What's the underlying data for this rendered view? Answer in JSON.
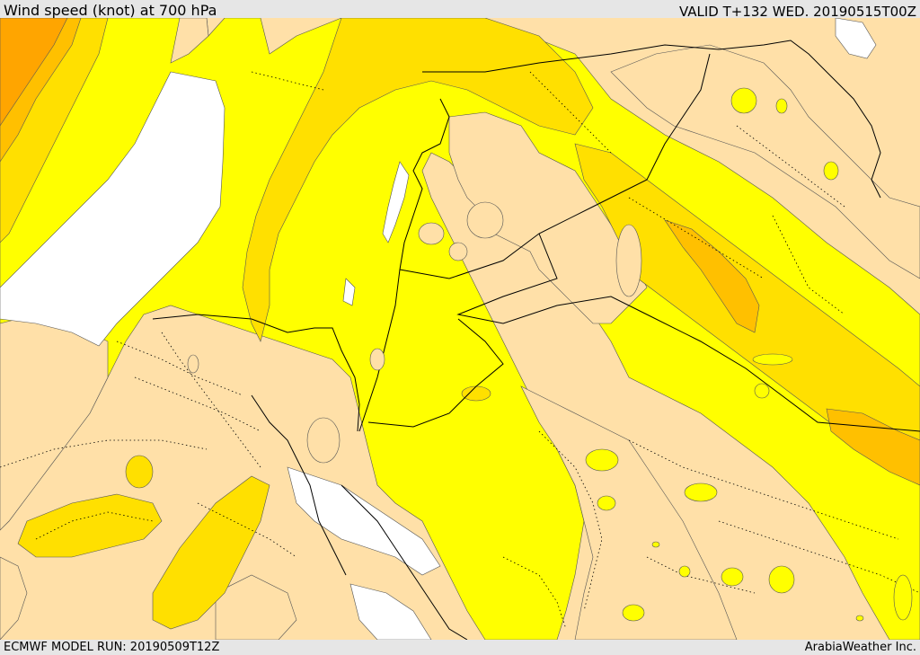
{
  "header": {
    "title": "Wind speed (knot) at 700 hPa",
    "valid": "VALID T+132 WED. 20190515T00Z"
  },
  "footer": {
    "model_run": "ECMWF MODEL RUN: 20190509T12Z",
    "brand": "ArabiaWeather Inc."
  },
  "map": {
    "colors": {
      "missing": "#ffffff",
      "light": "#ffe0a8",
      "yellow": "#ffff00",
      "gold": "#ffe000",
      "amber": "#ffc000",
      "orange": "#ffa500",
      "deep_orange": "#ff8c00",
      "boundary": "#000000"
    }
  }
}
